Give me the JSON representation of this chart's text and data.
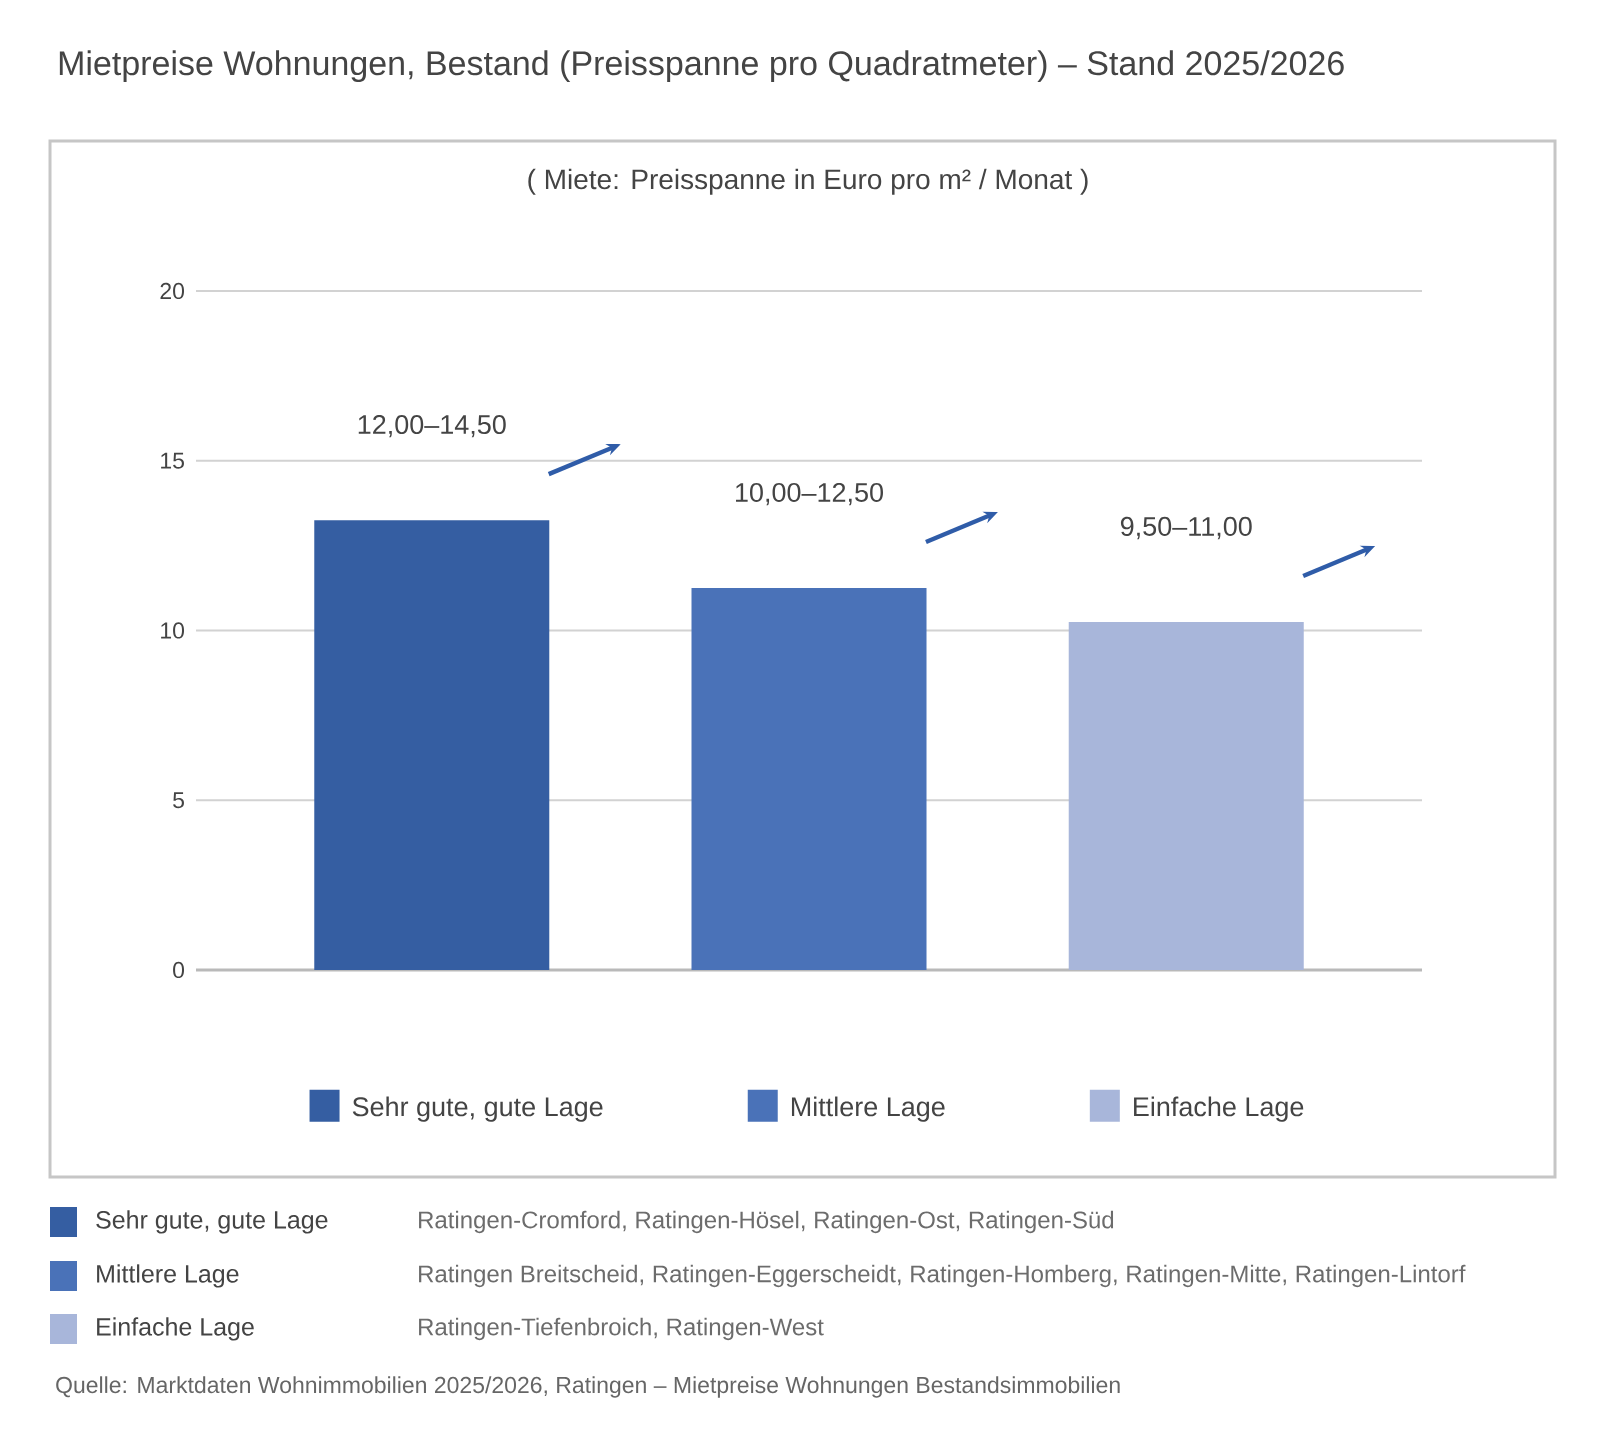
{
  "chart_data": {
    "type": "bar",
    "title": "Mietpreise Wohnungen, Bestand (Preisspanne pro Quadratmeter) – Stand 2025/2026",
    "subtitle": "( Miete: Preisspanne in Euro pro m² / Monat )",
    "categories": [
      null,
      null,
      null
    ],
    "series": [
      {
        "name": "Sehr gute, gute Lage",
        "color": "#355ea2",
        "values": [
          13.25,
          null,
          null
        ],
        "value_labels": [
          "12,00–14,50",
          null,
          null
        ]
      },
      {
        "name": "Mittlere Lage",
        "color": "#4a72b8",
        "values": [
          null,
          11.25,
          null
        ],
        "value_labels": [
          null,
          "10,00–12,50",
          null
        ]
      },
      {
        "name": "Einfache Lage",
        "color": "#a8b6da",
        "values": [
          null,
          null,
          10.25
        ],
        "value_labels": [
          null,
          null,
          "9,50–11,00"
        ]
      }
    ],
    "ylim": [
      0,
      20
    ],
    "yticks": [
      0,
      5,
      10,
      15,
      20
    ],
    "grid": "y",
    "legend": "bottom",
    "annotations": [
      "Ratingen-Cromford, Ratingen-Hösel, Ratingen-Ost, Ratingen-Süd",
      "Ratingen Breitscheid, Ratingen-Eggerscheidt, Ratingen-Homberg, Ratingen-Mitte, Ratingen-Lintorf",
      "Ratingen-Tiefenbroich, Ratingen-West",
      "Quelle: Marktdaten Wohnimmobilien 2025/2026, Ratingen – Mietpreise Wohnungen Bestandsimmobilien"
    ]
  }
}
